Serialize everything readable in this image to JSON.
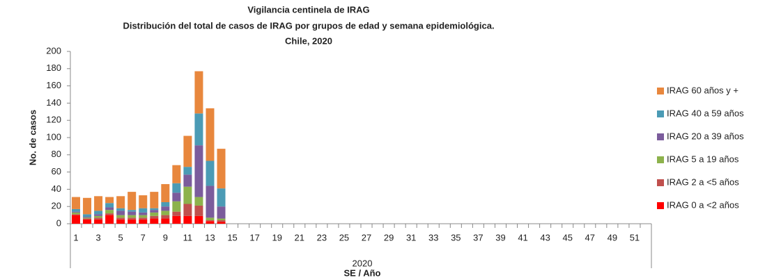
{
  "chart_data": {
    "type": "stacked_bar",
    "title_lines": [
      "Vigilancia centinela de IRAG",
      "Distribución del total de casos de IRAG por  grupos de edad y semana epidemiológica.",
      "Chile, 2020"
    ],
    "ylabel": "No. de casos",
    "x_group": "2020",
    "xlabel": "SE / Año",
    "categories": [
      "1",
      null,
      "3",
      null,
      "5",
      null,
      "7",
      null,
      "9",
      null,
      "11",
      null,
      "13",
      null,
      "15",
      null,
      "17",
      null,
      "19",
      null,
      "21",
      null,
      "23",
      null,
      "25",
      null,
      "27",
      null,
      "29",
      null,
      "31",
      null,
      "33",
      null,
      "35",
      null,
      "37",
      null,
      "39",
      null,
      "41",
      null,
      "43",
      null,
      "45",
      null,
      "47",
      null,
      "49",
      null,
      "51",
      null
    ],
    "series": [
      {
        "name": "IRAG 0 a <2 años",
        "color": "#ff0000",
        "values": [
          10,
          5,
          5,
          10,
          5,
          5,
          5,
          6,
          6,
          9,
          9,
          9,
          3,
          2,
          null,
          null,
          null,
          null,
          null,
          null,
          null,
          null,
          null,
          null,
          null,
          null,
          null,
          null,
          null,
          null,
          null,
          null,
          null,
          null,
          null,
          null,
          null,
          null,
          null,
          null,
          null,
          null,
          null,
          null,
          null,
          null,
          null,
          null,
          null,
          null,
          null,
          null
        ]
      },
      {
        "name": "IRAG 2 a <5 años",
        "color": "#c0504d",
        "values": [
          1,
          1,
          2,
          2,
          2,
          2,
          2,
          3,
          4,
          5,
          14,
          12,
          1,
          2,
          null,
          null,
          null,
          null,
          null,
          null,
          null,
          null,
          null,
          null,
          null,
          null,
          null,
          null,
          null,
          null,
          null,
          null,
          null,
          null,
          null,
          null,
          null,
          null,
          null,
          null,
          null,
          null,
          null,
          null,
          null,
          null,
          null,
          null,
          null,
          null,
          null,
          null
        ]
      },
      {
        "name": "IRAG 5 a 19 años",
        "color": "#8db24c",
        "values": [
          2,
          1,
          2,
          4,
          3,
          3,
          3,
          4,
          5,
          12,
          20,
          10,
          3,
          2,
          null,
          null,
          null,
          null,
          null,
          null,
          null,
          null,
          null,
          null,
          null,
          null,
          null,
          null,
          null,
          null,
          null,
          null,
          null,
          null,
          null,
          null,
          null,
          null,
          null,
          null,
          null,
          null,
          null,
          null,
          null,
          null,
          null,
          null,
          null,
          null,
          null,
          null
        ]
      },
      {
        "name": "IRAG 20 a 39 años",
        "color": "#7b5c9c",
        "values": [
          1,
          1,
          2,
          3,
          5,
          4,
          3,
          3,
          5,
          10,
          14,
          60,
          37,
          14,
          null,
          null,
          null,
          null,
          null,
          null,
          null,
          null,
          null,
          null,
          null,
          null,
          null,
          null,
          null,
          null,
          null,
          null,
          null,
          null,
          null,
          null,
          null,
          null,
          null,
          null,
          null,
          null,
          null,
          null,
          null,
          null,
          null,
          null,
          null,
          null,
          null,
          null
        ]
      },
      {
        "name": "IRAG 40 a 59 años",
        "color": "#4b9bb5",
        "values": [
          3,
          3,
          4,
          5,
          3,
          2,
          5,
          2,
          5,
          11,
          9,
          37,
          29,
          21,
          null,
          null,
          null,
          null,
          null,
          null,
          null,
          null,
          null,
          null,
          null,
          null,
          null,
          null,
          null,
          null,
          null,
          null,
          null,
          null,
          null,
          null,
          null,
          null,
          null,
          null,
          null,
          null,
          null,
          null,
          null,
          null,
          null,
          null,
          null,
          null,
          null,
          null
        ]
      },
      {
        "name": "IRAG 60 años y +",
        "color": "#e8873d",
        "values": [
          14,
          19,
          17,
          7,
          14,
          21,
          15,
          19,
          21,
          21,
          36,
          49,
          61,
          46,
          null,
          null,
          null,
          null,
          null,
          null,
          null,
          null,
          null,
          null,
          null,
          null,
          null,
          null,
          null,
          null,
          null,
          null,
          null,
          null,
          null,
          null,
          null,
          null,
          null,
          null,
          null,
          null,
          null,
          null,
          null,
          null,
          null,
          null,
          null,
          null,
          null,
          null
        ]
      }
    ],
    "ylim": [
      0,
      200
    ],
    "yticks": [
      0,
      20,
      40,
      60,
      80,
      100,
      120,
      140,
      160,
      180,
      200
    ]
  }
}
